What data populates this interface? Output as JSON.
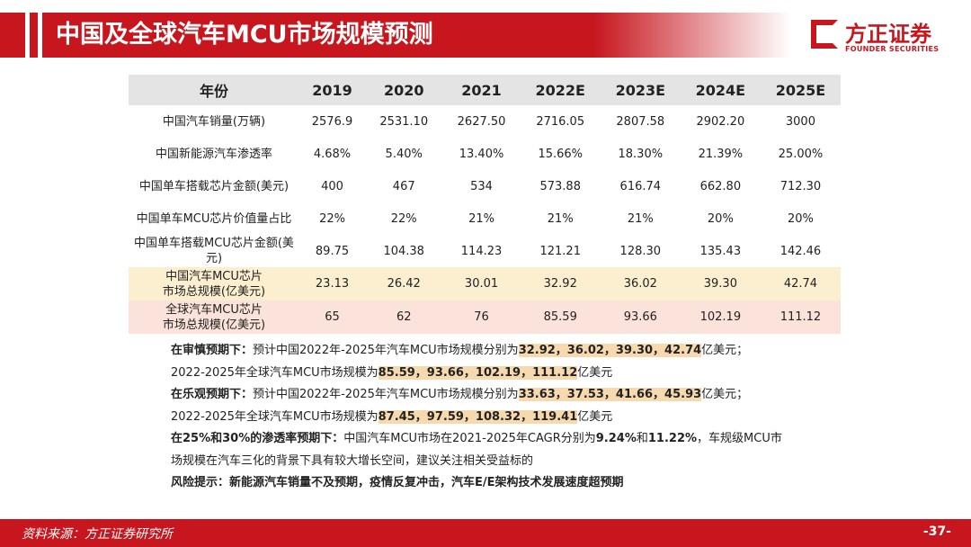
{
  "header": {
    "title": "中国及全球汽车MCU市场规模预测",
    "logo_cn": "方正证券",
    "logo_en": "FOUNDER SECURITIES"
  },
  "table": {
    "header": [
      "年份",
      "2019",
      "2020",
      "2021",
      "2022E",
      "2023E",
      "2024E",
      "2025E"
    ],
    "rows": [
      [
        "中国汽车销量(万辆)",
        "2576.9",
        "2531.10",
        "2627.50",
        "2716.05",
        "2807.58",
        "2902.20",
        "3000"
      ],
      [
        "中国新能源汽车渗透率",
        "4.68%",
        "5.40%",
        "13.40%",
        "15.66%",
        "18.30%",
        "21.39%",
        "25.00%"
      ],
      [
        "中国单车搭载芯片金额(美元)",
        "400",
        "467",
        "534",
        "573.88",
        "616.74",
        "662.80",
        "712.30"
      ],
      [
        "中国单车MCU芯片价值量占比",
        "22%",
        "22%",
        "21%",
        "21%",
        "21%",
        "20%",
        "20%"
      ],
      [
        "中国单车搭载MCU芯片金额(美元)",
        "89.75",
        "104.38",
        "114.23",
        "121.21",
        "128.30",
        "135.43",
        "142.46"
      ],
      [
        "中国汽车MCU芯片\n市场总规模(亿美元)",
        "23.13",
        "26.42",
        "30.01",
        "32.92",
        "36.02",
        "39.30",
        "42.74"
      ],
      [
        "全球汽车MCU芯片\n市场总规模(亿美元)",
        "65",
        "62",
        "76",
        "85.59",
        "93.66",
        "102.19",
        "111.12"
      ]
    ]
  },
  "notes": [
    [
      "在审慎预期下：",
      "预计中国2022年-2025年汽车MCU市场规模分别为",
      "32.92，36.02，39.30，42.74",
      "亿美元；"
    ],
    [
      "2022-2025年全球汽车MCU市场规模为",
      "85.59，93.66，102.19，111.12",
      "亿美元"
    ],
    [
      "在乐观预期下：",
      "预计中国2022年-2025年汽车MCU市场规模分别为",
      "33.63，37.53，41.66，45.93",
      "亿美元；"
    ],
    [
      "2022-2025年全球汽车MCU市场规模为",
      "87.45，97.59，108.32，119.41",
      "亿美元"
    ],
    [
      "在25%和30%的渗透率预期下：",
      "中国汽车MCU市场在2021-2025年CAGR分别为",
      "9.24%",
      "和",
      "11.22%",
      "，车规级MCU市场规模在汽车三化的背景下具有较大增长空间，建议关注相关受益标的"
    ],
    [
      "风险提示：",
      "新能源汽车销量不及预期，疫情反复冲击，汽车E/E架构技术发展速度超预期"
    ]
  ],
  "footer": {
    "source": "资料来源：方正证券研究所",
    "page": "-37-"
  }
}
